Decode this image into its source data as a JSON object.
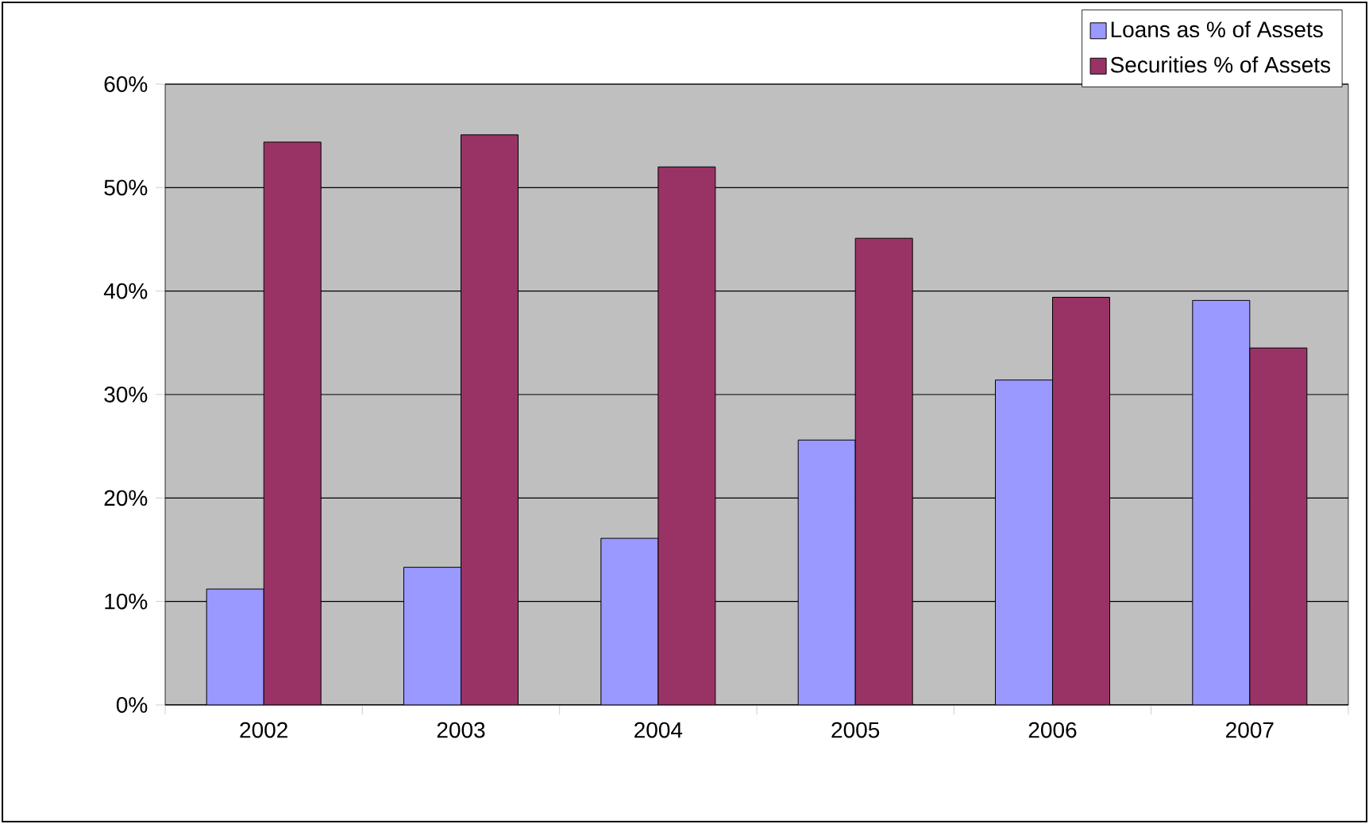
{
  "chart_data": {
    "type": "bar",
    "categories": [
      "2002",
      "2003",
      "2004",
      "2005",
      "2006",
      "2007"
    ],
    "series": [
      {
        "name": "Loans as % of Assets",
        "color": "#9999ff",
        "values": [
          11.2,
          13.3,
          16.1,
          25.6,
          31.4,
          39.1
        ]
      },
      {
        "name": "Securities % of Assets",
        "color": "#993366",
        "values": [
          54.4,
          55.1,
          52.0,
          45.1,
          39.4,
          34.5
        ]
      }
    ],
    "ylim": [
      0,
      60
    ],
    "yticks": [
      {
        "value": 0,
        "label": "0%"
      },
      {
        "value": 10,
        "label": "10%"
      },
      {
        "value": 20,
        "label": "20%"
      },
      {
        "value": 30,
        "label": "30%"
      },
      {
        "value": 40,
        "label": "40%"
      },
      {
        "value": 50,
        "label": "50%"
      },
      {
        "value": 60,
        "label": "60%"
      }
    ],
    "grid": "y",
    "legend": "top right"
  }
}
